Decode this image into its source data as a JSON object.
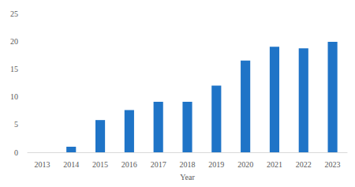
{
  "chart_data": {
    "type": "bar",
    "x_label": "Year",
    "categories": [
      "2013",
      "2014",
      "2015",
      "2016",
      "2017",
      "2018",
      "2019",
      "2020",
      "2021",
      "2022",
      "2023"
    ],
    "values": [
      0,
      1,
      5.8,
      7.6,
      9.1,
      9.1,
      12,
      16.5,
      19,
      18.7,
      19.9
    ],
    "color": "#1f74c7",
    "ylim": [
      0,
      25
    ],
    "yticks": [
      0,
      5,
      10,
      15,
      20,
      25
    ],
    "grid": false
  }
}
